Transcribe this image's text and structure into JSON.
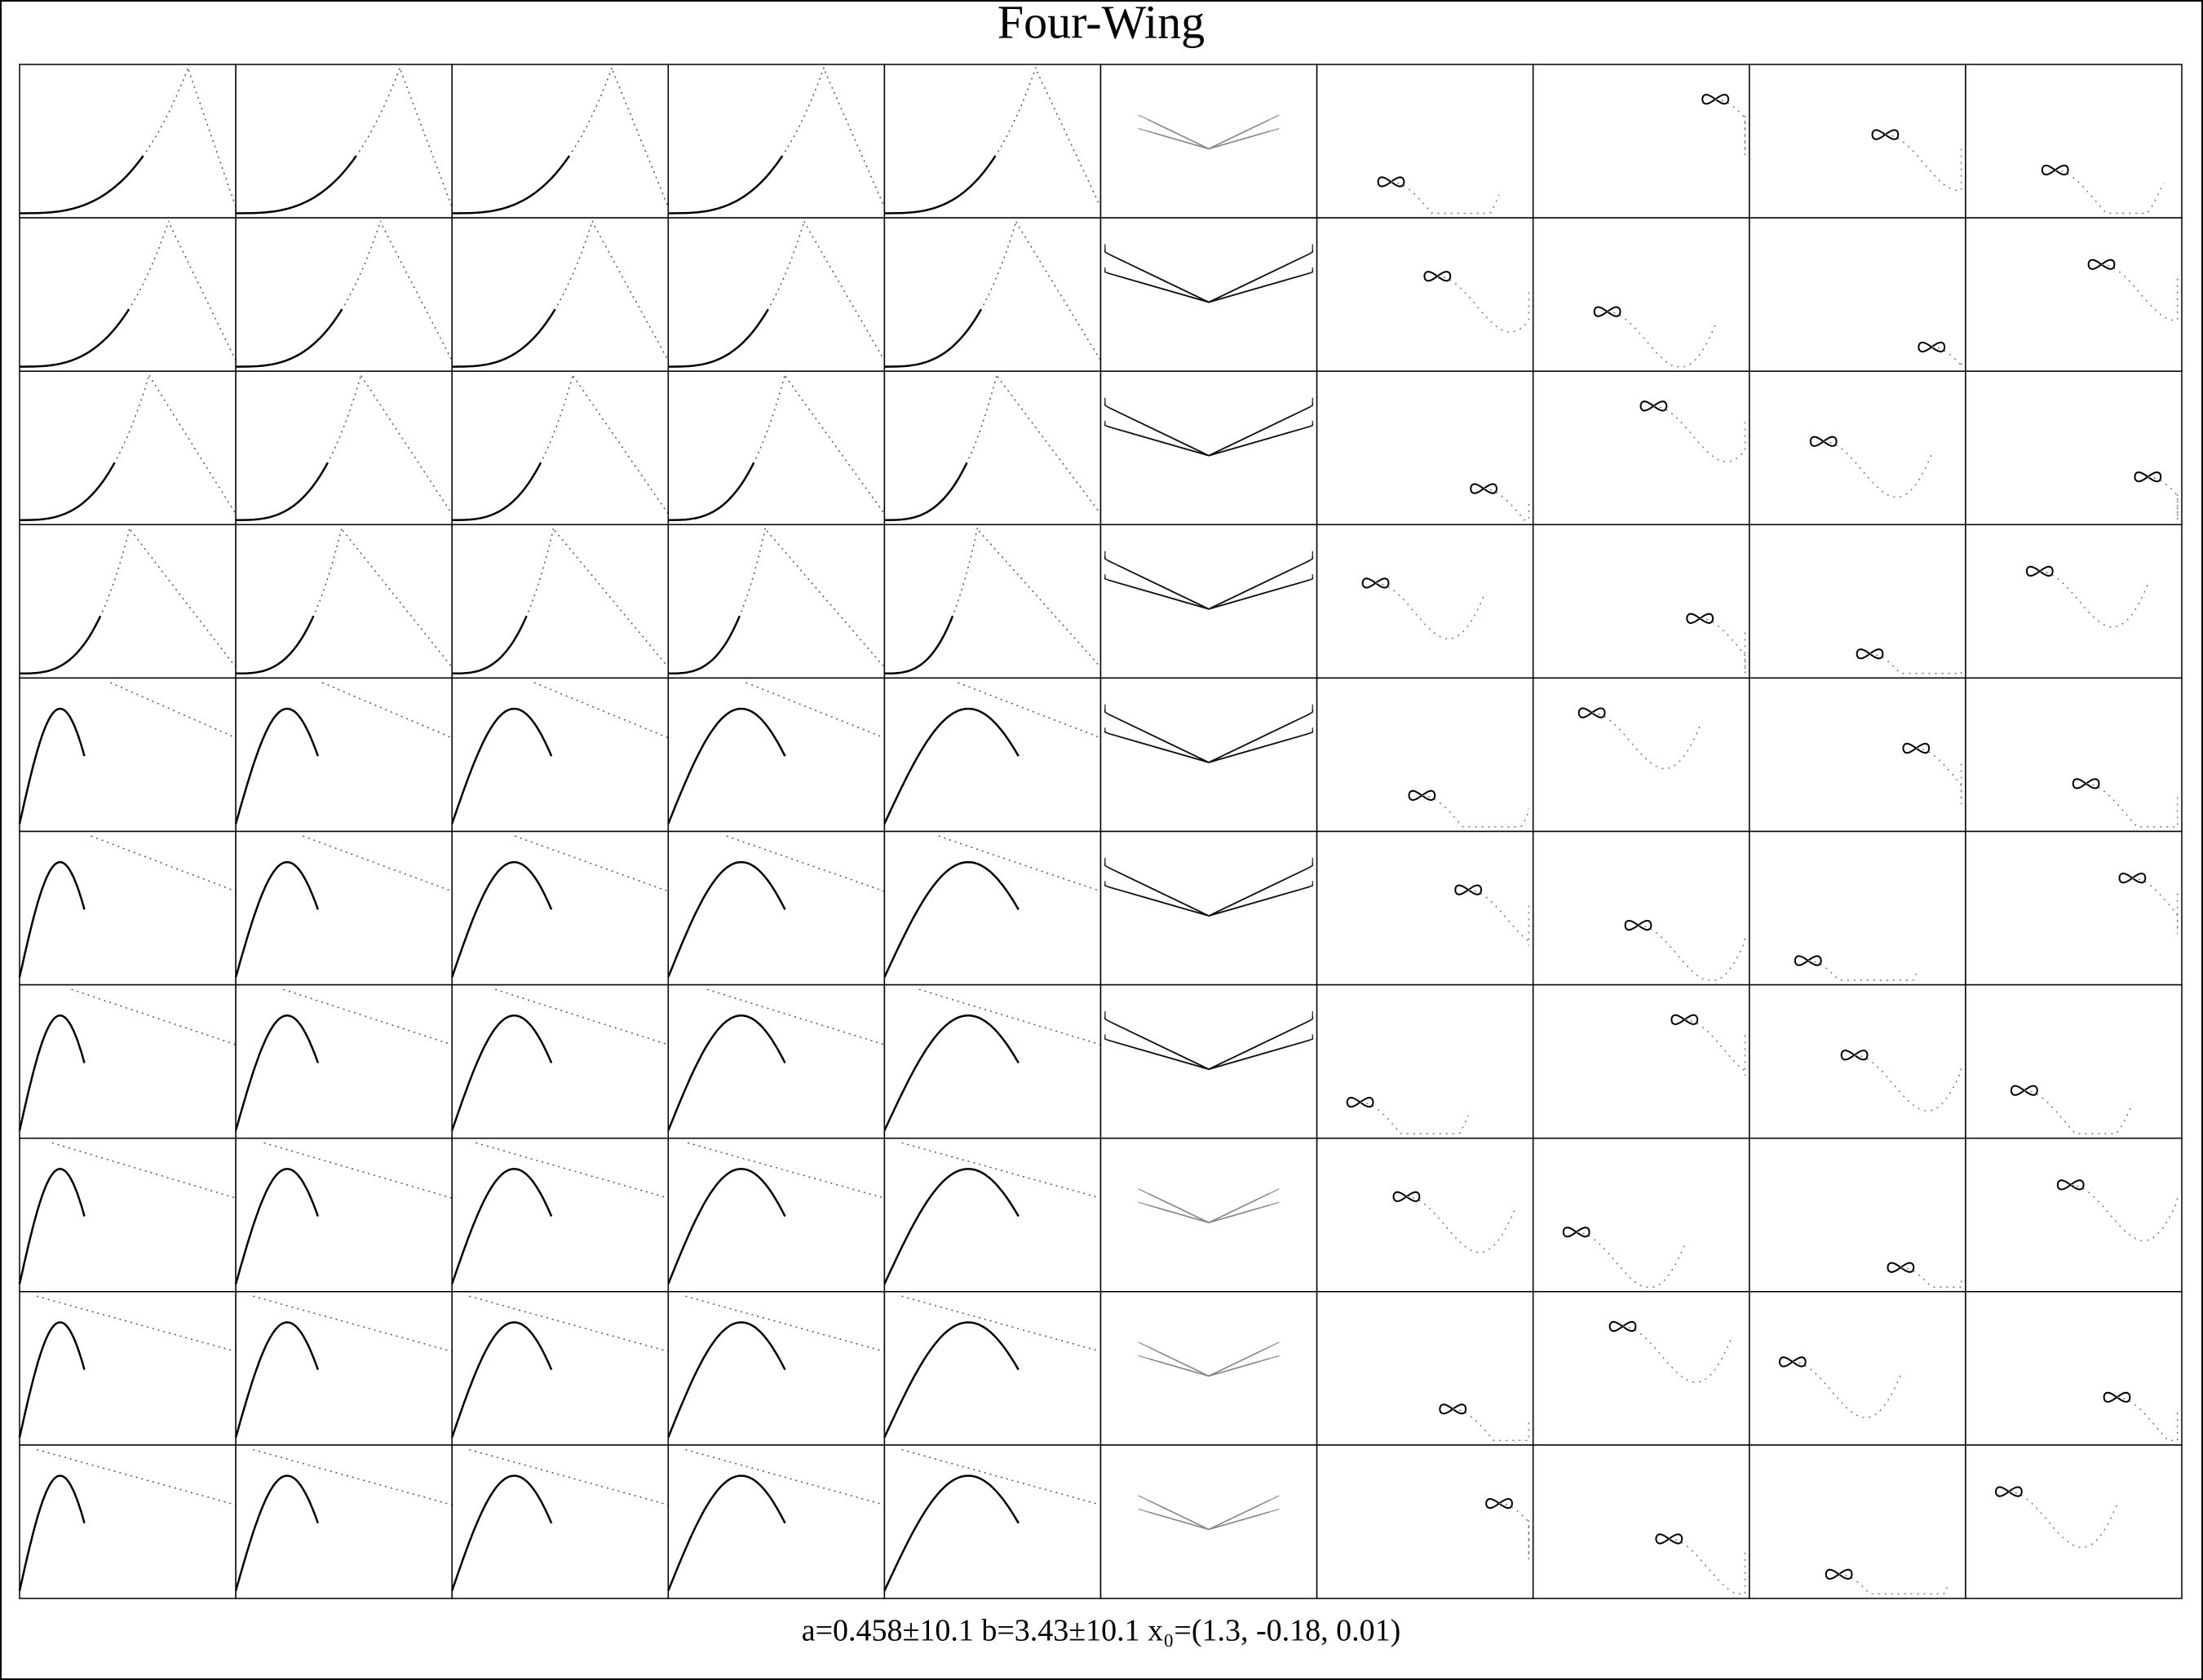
{
  "header": {
    "title": "Four-Wing"
  },
  "footer": {
    "caption": "a=0.458±10.1 b=3.43±10.1 x₀=(1.3, -0.18, 0.01)"
  }
}
